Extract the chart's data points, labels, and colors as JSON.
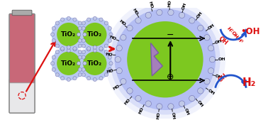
{
  "bg_color": "#ffffff",
  "green_color": "#7dc820",
  "halo_color": "#b8c8f0",
  "knob_color": "#c0c8e8",
  "knob_edge": "#6666aa",
  "red_color": "#dd1111",
  "blue_color": "#2255cc",
  "purple1": "#7755aa",
  "purple2": "#aa77cc",
  "black": "#111111",
  "tio2": "TiO₂",
  "minus": "−",
  "plus": "⊕",
  "h2": "H₂",
  "oh_rad": "•OH"
}
